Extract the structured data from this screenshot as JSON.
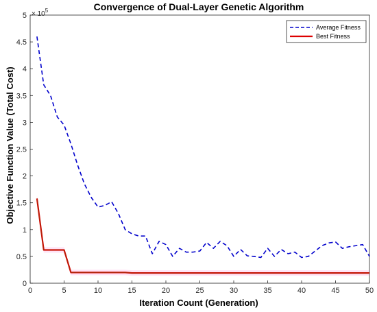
{
  "chart_data": {
    "type": "line",
    "title": "Convergence of Dual-Layer Genetic Algorithm",
    "xlabel": "Iteration Count (Generation)",
    "ylabel": "Objective Function Value (Total Cost)",
    "y_exponent_label": "× 10",
    "y_exponent": "5",
    "xlim": [
      0,
      50
    ],
    "ylim": [
      0,
      5
    ],
    "y_scale_note": "values ×10^5",
    "xticks": [
      0,
      5,
      10,
      15,
      20,
      25,
      30,
      35,
      40,
      45,
      50
    ],
    "yticks": [
      0,
      0.5,
      1,
      1.5,
      2,
      2.5,
      3,
      3.5,
      4,
      4.5,
      5
    ],
    "ytick_labels": [
      "0",
      "0.5",
      "1",
      "1.5",
      "2",
      "2.5",
      "3",
      "3.5",
      "4",
      "4.5",
      "5"
    ],
    "grid": true,
    "legend_position": "top-right",
    "series": [
      {
        "name": "Average Fitness",
        "color": "#0000cc",
        "style": "dashed",
        "x": [
          1,
          2,
          3,
          4,
          5,
          6,
          7,
          8,
          9,
          10,
          11,
          12,
          13,
          14,
          15,
          16,
          17,
          18,
          19,
          20,
          21,
          22,
          23,
          24,
          25,
          26,
          27,
          28,
          29,
          30,
          31,
          32,
          33,
          34,
          35,
          36,
          37,
          38,
          39,
          40,
          41,
          42,
          43,
          44,
          45,
          46,
          47,
          48,
          49,
          50
        ],
        "y": [
          4.6,
          3.7,
          3.5,
          3.1,
          2.95,
          2.6,
          2.2,
          1.85,
          1.6,
          1.42,
          1.45,
          1.52,
          1.3,
          1.0,
          0.92,
          0.88,
          0.88,
          0.55,
          0.78,
          0.72,
          0.5,
          0.65,
          0.58,
          0.58,
          0.6,
          0.76,
          0.65,
          0.78,
          0.7,
          0.5,
          0.63,
          0.51,
          0.5,
          0.48,
          0.65,
          0.5,
          0.63,
          0.55,
          0.58,
          0.48,
          0.5,
          0.6,
          0.7,
          0.75,
          0.77,
          0.65,
          0.68,
          0.7,
          0.72,
          0.5
        ]
      },
      {
        "name": "Best Fitness",
        "color": "#dd0000",
        "style": "solid",
        "x": [
          1,
          2,
          3,
          4,
          5,
          6,
          7,
          8,
          9,
          10,
          11,
          12,
          13,
          14,
          15,
          16,
          17,
          18,
          19,
          20,
          21,
          22,
          23,
          24,
          25,
          26,
          27,
          28,
          29,
          30,
          31,
          32,
          33,
          34,
          35,
          36,
          37,
          38,
          39,
          40,
          41,
          42,
          43,
          44,
          45,
          46,
          47,
          48,
          49,
          50
        ],
        "y": [
          1.58,
          0.62,
          0.62,
          0.62,
          0.62,
          0.2,
          0.2,
          0.2,
          0.2,
          0.2,
          0.2,
          0.2,
          0.2,
          0.2,
          0.19,
          0.19,
          0.19,
          0.19,
          0.19,
          0.19,
          0.19,
          0.19,
          0.19,
          0.19,
          0.19,
          0.19,
          0.19,
          0.19,
          0.19,
          0.19,
          0.19,
          0.19,
          0.19,
          0.19,
          0.19,
          0.19,
          0.19,
          0.19,
          0.19,
          0.19,
          0.19,
          0.19,
          0.19,
          0.19,
          0.19,
          0.19,
          0.19,
          0.19,
          0.19,
          0.19
        ]
      }
    ]
  }
}
